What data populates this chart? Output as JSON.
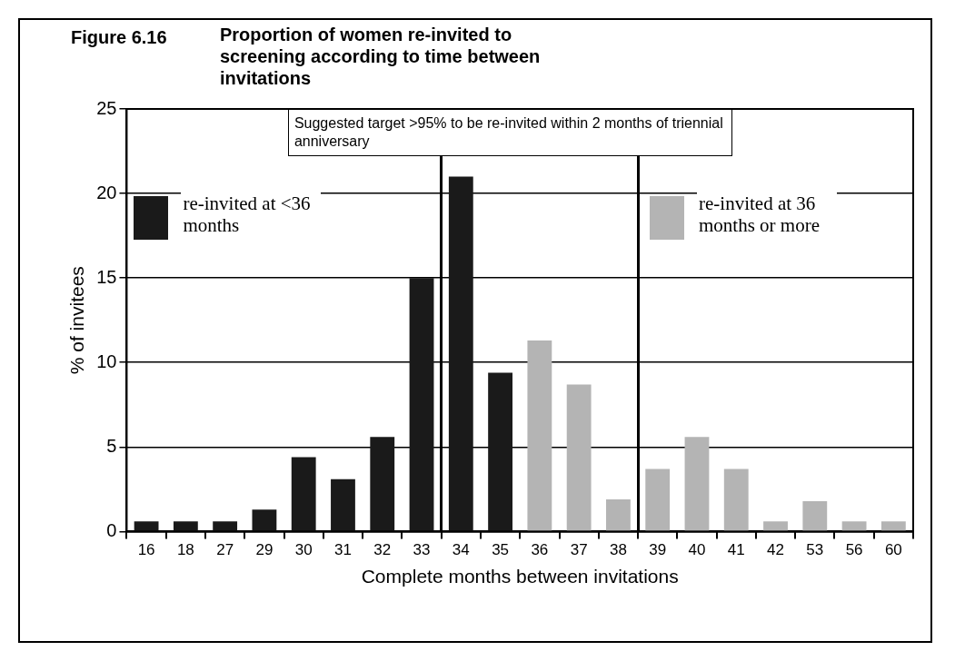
{
  "chart_data": {
    "type": "bar",
    "title": "Proportion of women re-invited to screening according to time between invitations",
    "xlabel": "Complete months between invitations",
    "ylabel": "% of invitees",
    "categories": [
      "16",
      "18",
      "27",
      "29",
      "30",
      "31",
      "32",
      "33",
      "34",
      "35",
      "36",
      "37",
      "38",
      "39",
      "40",
      "41",
      "42",
      "53",
      "56",
      "60"
    ],
    "series": [
      {
        "name": "re-invited at <36 months",
        "color": "#1a1a1a",
        "values": [
          0.6,
          0.6,
          0.6,
          1.3,
          4.4,
          3.1,
          5.6,
          15,
          21,
          9.4,
          null,
          null,
          null,
          null,
          null,
          null,
          null,
          null,
          null,
          null
        ]
      },
      {
        "name": "re-invited at 36 months or more",
        "color": "#b4b4b4",
        "values": [
          null,
          null,
          null,
          null,
          null,
          null,
          null,
          null,
          null,
          null,
          11.3,
          8.7,
          1.9,
          3.7,
          5.6,
          3.7,
          0.6,
          1.8,
          0.6,
          0.6
        ]
      }
    ],
    "ylim": [
      0,
      25
    ],
    "yticks": [
      0,
      5,
      10,
      15,
      20,
      25
    ],
    "grid": "y",
    "legend": "top",
    "annotations": [
      "Figure 6.16",
      "Suggested target >95% to be re-invited within 2 months of triennial anniversary"
    ]
  }
}
